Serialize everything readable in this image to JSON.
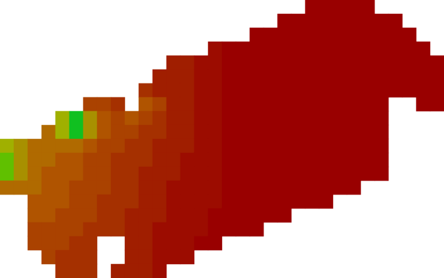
{
  "chart_data": {
    "type": "heatmap",
    "values": [
      [
        null,
        null,
        null,
        null,
        null,
        null,
        null,
        null,
        null,
        null,
        null,
        null,
        null,
        null,
        null,
        null,
        null,
        null,
        null,
        null,
        null,
        null,
        0,
        0,
        0,
        0,
        0,
        null,
        null,
        null,
        null,
        null
      ],
      [
        null,
        null,
        null,
        null,
        null,
        null,
        null,
        null,
        null,
        null,
        null,
        null,
        null,
        null,
        null,
        null,
        null,
        null,
        null,
        null,
        0,
        0,
        0,
        0,
        0,
        0,
        0,
        0,
        0,
        null,
        null,
        null
      ],
      [
        null,
        null,
        null,
        null,
        null,
        null,
        null,
        null,
        null,
        null,
        null,
        null,
        null,
        null,
        null,
        null,
        null,
        null,
        0,
        0,
        0,
        0,
        0,
        0,
        0,
        0,
        0,
        0,
        0,
        0,
        null,
        null
      ],
      [
        null,
        null,
        null,
        null,
        null,
        null,
        null,
        null,
        null,
        null,
        null,
        null,
        null,
        null,
        null,
        1,
        0,
        0,
        0,
        0,
        0,
        0,
        0,
        0,
        0,
        0,
        0,
        0,
        0,
        0,
        0,
        null
      ],
      [
        null,
        null,
        null,
        null,
        null,
        null,
        null,
        null,
        null,
        null,
        null,
        null,
        2,
        2,
        1,
        1,
        0,
        0,
        0,
        0,
        0,
        0,
        0,
        0,
        0,
        0,
        0,
        0,
        0,
        0,
        0,
        0
      ],
      [
        null,
        null,
        null,
        null,
        null,
        null,
        null,
        null,
        null,
        null,
        null,
        2,
        2,
        2,
        1,
        1,
        0,
        0,
        0,
        0,
        0,
        0,
        0,
        0,
        0,
        0,
        0,
        0,
        0,
        0,
        0,
        0
      ],
      [
        null,
        null,
        null,
        null,
        null,
        null,
        null,
        null,
        null,
        null,
        3,
        2,
        2,
        2,
        1,
        1,
        0,
        0,
        0,
        0,
        0,
        0,
        0,
        0,
        0,
        0,
        0,
        0,
        0,
        0,
        0,
        0
      ],
      [
        null,
        null,
        null,
        null,
        null,
        null,
        4,
        4,
        3,
        null,
        5,
        4,
        2,
        2,
        1,
        1,
        0,
        0,
        0,
        0,
        0,
        0,
        0,
        0,
        0,
        0,
        0,
        0,
        null,
        null,
        0,
        0
      ],
      [
        null,
        null,
        null,
        null,
        8,
        10,
        7,
        5,
        4,
        5,
        4,
        3,
        2,
        2,
        1,
        1,
        0,
        0,
        0,
        0,
        0,
        0,
        0,
        0,
        0,
        0,
        0,
        0,
        null,
        null,
        null,
        null
      ],
      [
        null,
        null,
        null,
        6,
        8,
        10,
        7,
        5,
        4,
        4,
        3,
        3,
        2,
        2,
        1,
        1,
        0,
        0,
        0,
        0,
        0,
        0,
        0,
        0,
        0,
        0,
        0,
        0,
        null,
        null,
        null,
        null
      ],
      [
        8,
        7,
        6,
        6,
        6,
        6,
        5,
        4,
        4,
        3,
        3,
        2,
        2,
        2,
        1,
        1,
        0,
        0,
        0,
        0,
        0,
        0,
        0,
        0,
        0,
        0,
        0,
        0,
        null,
        null,
        null,
        null
      ],
      [
        9,
        7,
        6,
        6,
        5,
        5,
        4,
        4,
        3,
        3,
        3,
        2,
        2,
        1,
        1,
        1,
        0,
        0,
        0,
        0,
        0,
        0,
        0,
        0,
        0,
        0,
        0,
        0,
        null,
        null,
        null,
        null
      ],
      [
        9,
        7,
        6,
        5,
        5,
        5,
        4,
        4,
        3,
        3,
        2,
        2,
        2,
        1,
        1,
        1,
        0,
        0,
        0,
        0,
        0,
        0,
        0,
        0,
        0,
        0,
        0,
        0,
        null,
        null,
        null,
        null
      ],
      [
        6,
        6,
        6,
        5,
        5,
        4,
        4,
        4,
        3,
        3,
        2,
        2,
        1,
        1,
        1,
        1,
        0,
        0,
        0,
        0,
        0,
        0,
        0,
        0,
        0,
        0,
        null,
        null,
        null,
        null,
        null,
        null
      ],
      [
        null,
        null,
        5,
        5,
        5,
        4,
        4,
        3,
        3,
        3,
        2,
        2,
        1,
        1,
        1,
        1,
        0,
        0,
        0,
        0,
        0,
        0,
        0,
        0,
        null,
        null,
        null,
        null,
        null,
        null,
        null,
        null
      ],
      [
        null,
        null,
        5,
        5,
        4,
        4,
        4,
        3,
        3,
        2,
        2,
        2,
        1,
        1,
        1,
        0,
        0,
        0,
        0,
        0,
        0,
        null,
        null,
        null,
        null,
        null,
        null,
        null,
        null,
        null,
        null,
        null
      ],
      [
        null,
        null,
        4,
        4,
        4,
        4,
        3,
        3,
        3,
        2,
        2,
        1,
        1,
        1,
        1,
        0,
        0,
        0,
        0,
        null,
        null,
        null,
        null,
        null,
        null,
        null,
        null,
        null,
        null,
        null,
        null,
        null
      ],
      [
        null,
        null,
        4,
        4,
        4,
        3,
        3,
        null,
        null,
        2,
        2,
        1,
        1,
        1,
        0,
        0,
        null,
        null,
        null,
        null,
        null,
        null,
        null,
        null,
        null,
        null,
        null,
        null,
        null,
        null,
        null,
        null
      ],
      [
        null,
        null,
        null,
        4,
        3,
        3,
        3,
        null,
        null,
        2,
        2,
        1,
        1,
        1,
        null,
        null,
        null,
        null,
        null,
        null,
        null,
        null,
        null,
        null,
        null,
        null,
        null,
        null,
        null,
        null,
        null,
        null
      ],
      [
        null,
        null,
        null,
        null,
        3,
        3,
        3,
        null,
        2,
        2,
        2,
        1,
        null,
        null,
        null,
        null,
        null,
        null,
        null,
        null,
        null,
        null,
        null,
        null,
        null,
        null,
        null,
        null,
        null,
        null,
        null,
        null
      ]
    ],
    "value_range": [
      0,
      10
    ],
    "color_scale": [
      "#990000",
      "#9c0c00",
      "#a01e00",
      "#a53000",
      "#aa4200",
      "#b05400",
      "#b06a00",
      "#a89000",
      "#a0b000",
      "#60c000",
      "#10c020"
    ],
    "no_data": [
      [
        30,
        0
      ],
      [
        30,
        1
      ],
      [
        31,
        0
      ],
      [
        31,
        1
      ],
      [
        31,
        2
      ],
      [
        31,
        3
      ],
      [
        22,
        18
      ],
      [
        22,
        19
      ],
      [
        23,
        17
      ],
      [
        23,
        18
      ],
      [
        23,
        19
      ],
      [
        24,
        16
      ],
      [
        24,
        17
      ],
      [
        24,
        18
      ],
      [
        24,
        19
      ],
      [
        25,
        15
      ],
      [
        25,
        16
      ],
      [
        25,
        17
      ],
      [
        25,
        18
      ],
      [
        25,
        19
      ],
      [
        26,
        14
      ],
      [
        26,
        15
      ],
      [
        26,
        16
      ],
      [
        26,
        17
      ],
      [
        26,
        18
      ],
      [
        26,
        19
      ],
      [
        27,
        13
      ],
      [
        27,
        14
      ],
      [
        27,
        15
      ],
      [
        27,
        16
      ],
      [
        27,
        17
      ],
      [
        27,
        18
      ],
      [
        27,
        19
      ],
      [
        28,
        12
      ],
      [
        28,
        13
      ],
      [
        28,
        14
      ],
      [
        28,
        15
      ],
      [
        28,
        16
      ],
      [
        28,
        17
      ],
      [
        28,
        18
      ],
      [
        28,
        19
      ],
      [
        29,
        11
      ],
      [
        29,
        12
      ],
      [
        29,
        13
      ],
      [
        29,
        14
      ],
      [
        29,
        15
      ],
      [
        29,
        16
      ],
      [
        29,
        17
      ],
      [
        29,
        18
      ],
      [
        29,
        19
      ],
      [
        30,
        10
      ],
      [
        30,
        11
      ],
      [
        30,
        12
      ],
      [
        30,
        13
      ],
      [
        30,
        14
      ],
      [
        30,
        15
      ],
      [
        30,
        16
      ],
      [
        30,
        17
      ],
      [
        30,
        18
      ],
      [
        30,
        19
      ],
      [
        31,
        9
      ],
      [
        31,
        10
      ],
      [
        31,
        11
      ],
      [
        31,
        12
      ],
      [
        31,
        13
      ],
      [
        31,
        14
      ],
      [
        31,
        15
      ],
      [
        31,
        16
      ],
      [
        31,
        17
      ],
      [
        31,
        18
      ],
      [
        31,
        19
      ]
    ],
    "no_data_color": "#000000",
    "tick_labels": false,
    "grid": false
  }
}
